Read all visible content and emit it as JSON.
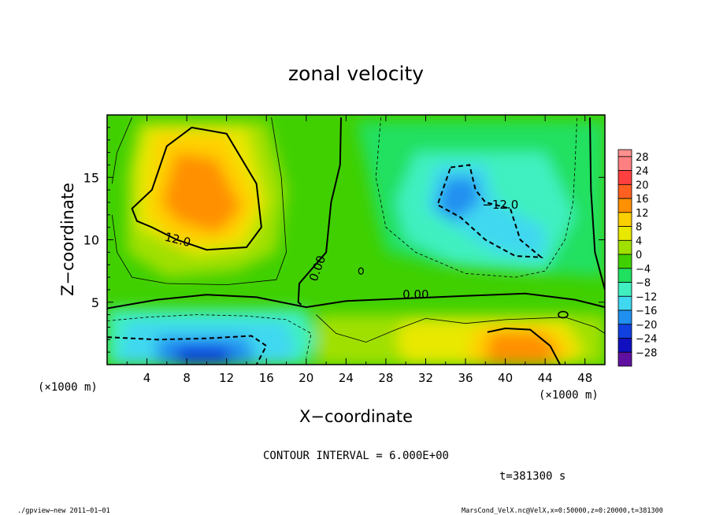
{
  "chart_data": {
    "type": "heatmap",
    "title": "zonal velocity",
    "xlabel": "X−coordinate",
    "ylabel": "Z−coordinate",
    "x_unit_left": "(×1000 m)",
    "x_unit_right": "(×1000 m)",
    "x_ticks": [
      "4",
      "8",
      "12",
      "16",
      "20",
      "24",
      "28",
      "32",
      "36",
      "40",
      "44",
      "48"
    ],
    "y_ticks": [
      "5",
      "10",
      "15"
    ],
    "xlim": [
      0,
      50
    ],
    "ylim": [
      0,
      20
    ],
    "colorbar_levels": [
      "28",
      "24",
      "20",
      "16",
      "12",
      "8",
      "4",
      "0",
      "−4",
      "−8",
      "−12",
      "−16",
      "−20",
      "−24",
      "−28"
    ],
    "colorbar_colors": [
      "#ff8080",
      "#ff4040",
      "#ff6020",
      "#ff9000",
      "#ffd000",
      "#e8e800",
      "#a0e000",
      "#40d000",
      "#20e060",
      "#40f0c0",
      "#40d8f0",
      "#2090f0",
      "#1040e0",
      "#1010c0",
      "#6010a0"
    ],
    "contour_labels": [
      {
        "text": "12.0",
        "x": 7,
        "y": 9.7
      },
      {
        "text": "0.00",
        "x": 21.5,
        "y": 7.6
      },
      {
        "text": "0.00",
        "x": 31,
        "y": 5.3
      },
      {
        "text": "−12.0",
        "x": 39.5,
        "y": 12.5
      }
    ],
    "features": [
      {
        "name": "max",
        "x": 9,
        "y": 13,
        "value": 16
      },
      {
        "name": "max",
        "x": 41,
        "y": 1.5,
        "value": 16
      },
      {
        "name": "min",
        "x": 35,
        "y": 13,
        "value": -14
      },
      {
        "name": "min",
        "x": 9,
        "y": 1,
        "value": -18
      }
    ],
    "contour_interval_text": "CONTOUR INTERVAL = 6.000E+00",
    "time_text": "t=381300 s"
  },
  "footer": {
    "left": "./gpview−new  2011−01−01",
    "right": "MarsCond_VelX.nc@VelX,x=0:50000,z=0:20000,t=381300"
  }
}
